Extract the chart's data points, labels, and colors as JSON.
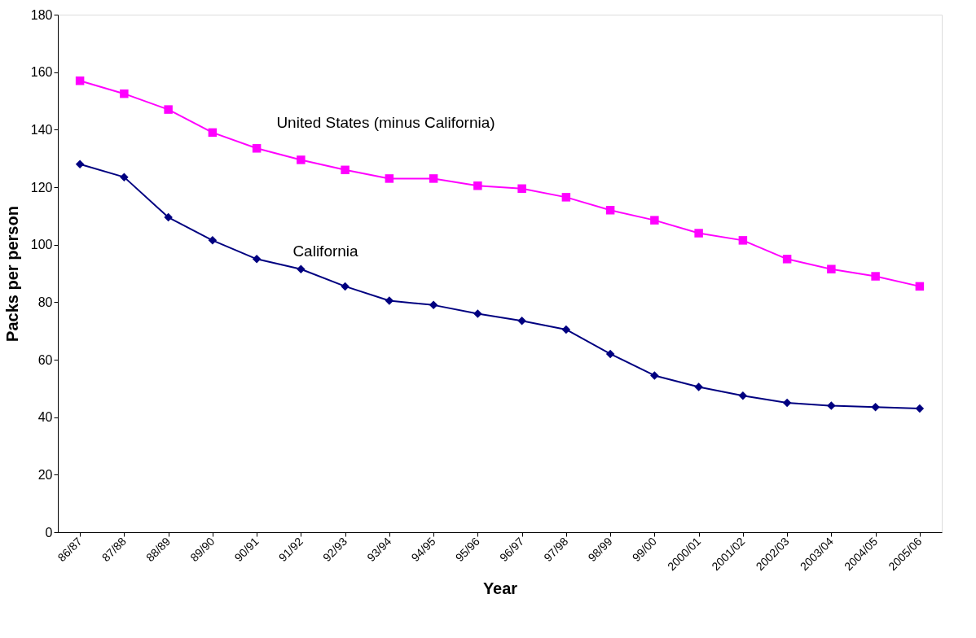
{
  "chart_data": {
    "type": "line",
    "xlabel": "Year",
    "ylabel": "Packs per person",
    "categories": [
      "86/87",
      "87/88",
      "88/89",
      "89/90",
      "90/91",
      "91/92",
      "92/93",
      "93/94",
      "94/95",
      "95/96",
      "96/97",
      "97/98",
      "98/99",
      "99/00",
      "2000/01",
      "2001/02",
      "2002/03",
      "2003/04",
      "2004/05",
      "2005/06"
    ],
    "series": [
      {
        "name": "United States (minus California)",
        "color": "#ff00ff",
        "marker": "square",
        "values": [
          157,
          152.5,
          147,
          139,
          133.5,
          129.5,
          126,
          123,
          123,
          120.5,
          119.5,
          116.5,
          112,
          108.5,
          104,
          101.5,
          95,
          91.5,
          89,
          85.5
        ]
      },
      {
        "name": "California",
        "color": "#000080",
        "marker": "diamond",
        "values": [
          128,
          123.5,
          109.5,
          101.5,
          95,
          91.5,
          85.5,
          80.5,
          79,
          76,
          73.5,
          70.5,
          62,
          54.5,
          50.5,
          47.5,
          45,
          44,
          43.5,
          43
        ]
      }
    ],
    "ylim": [
      0,
      180
    ],
    "yticks": [
      0,
      20,
      40,
      60,
      80,
      100,
      120,
      140,
      160,
      180
    ],
    "line_style": "solid"
  }
}
